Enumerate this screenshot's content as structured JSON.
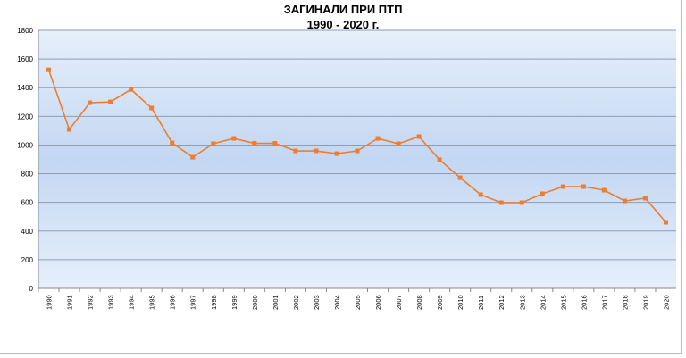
{
  "chart_data": {
    "type": "line",
    "title": "ЗАГИНАЛИ ПРИ ПТП",
    "subtitle": "1990 - 2020 г.",
    "xlabel": "",
    "ylabel": "",
    "ylim": [
      0,
      1800
    ],
    "yticks": [
      0,
      200,
      400,
      600,
      800,
      1000,
      1200,
      1400,
      1600,
      1800
    ],
    "grid": true,
    "legend": "none",
    "categories": [
      "1990",
      "1991",
      "1992",
      "1993",
      "1994",
      "1995",
      "1996",
      "1997",
      "1998",
      "1999",
      "2000",
      "2001",
      "2002",
      "2003",
      "2004",
      "2005",
      "2006",
      "2007",
      "2008",
      "2009",
      "2010",
      "2011",
      "2012",
      "2013",
      "2014",
      "2015",
      "2016",
      "2017",
      "2018",
      "2019",
      "2020"
    ],
    "series": [
      {
        "color": "#ED7D31",
        "values": [
          1525,
          1108,
          1295,
          1301,
          1388,
          1258,
          1015,
          915,
          1009,
          1046,
          1012,
          1012,
          959,
          959,
          940,
          959,
          1046,
          1009,
          1059,
          897,
          772,
          654,
          598,
          598,
          660,
          710,
          710,
          685,
          610,
          629,
          461
        ]
      }
    ]
  }
}
